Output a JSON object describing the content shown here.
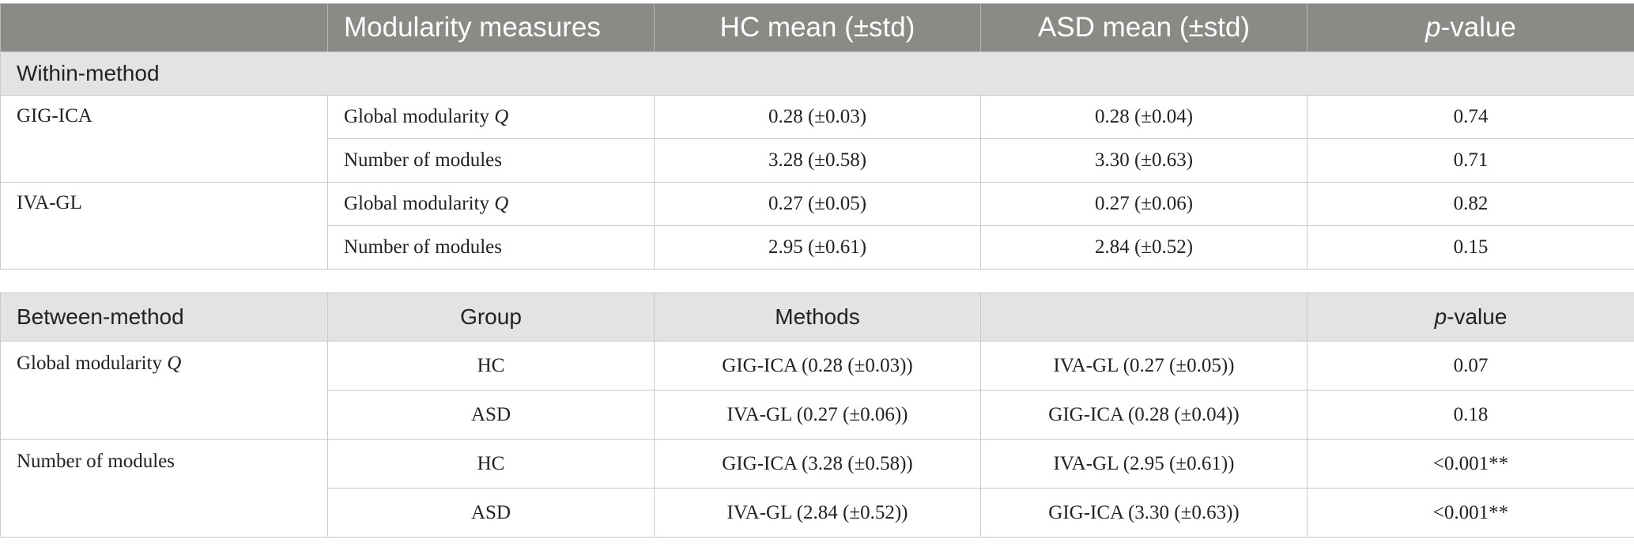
{
  "within_table": {
    "header": {
      "col0": "",
      "col1": "Modularity measures",
      "col2": "HC mean (±std)",
      "col3": "ASD mean (±std)",
      "col4_italic": "p",
      "col4_rest": "-value"
    },
    "section_label": "Within-method",
    "rows": [
      {
        "method": "GIG-ICA",
        "measure": "Global modularity ",
        "measure_symbol": "Q",
        "hc": "0.28 (±0.03)",
        "asd": "0.28 (±0.04)",
        "p": "0.74"
      },
      {
        "method": "",
        "measure": "Number of modules",
        "measure_symbol": "",
        "hc": "3.28 (±0.58)",
        "asd": "3.30 (±0.63)",
        "p": "0.71"
      },
      {
        "method": "IVA-GL",
        "measure": "Global modularity ",
        "measure_symbol": "Q",
        "hc": "0.27 (±0.05)",
        "asd": "0.27 (±0.06)",
        "p": "0.82"
      },
      {
        "method": "",
        "measure": "Number of modules",
        "measure_symbol": "",
        "hc": "2.95 (±0.61)",
        "asd": "2.84 (±0.52)",
        "p": "0.15"
      }
    ]
  },
  "between_table": {
    "header": {
      "col0": "Between-method",
      "col1": "Group",
      "col2": "Methods",
      "col3": "",
      "col4_italic": "p",
      "col4_rest": "-value"
    },
    "rows": [
      {
        "measure": "Global modularity ",
        "measure_symbol": "Q",
        "group": "HC",
        "method_a": "GIG-ICA (0.28 (±0.03))",
        "method_b": "IVA-GL (0.27 (±0.05))",
        "p": "0.07"
      },
      {
        "measure": "",
        "measure_symbol": "",
        "group": "ASD",
        "method_a": "IVA-GL (0.27 (±0.06))",
        "method_b": "GIG-ICA (0.28 (±0.04))",
        "p": "0.18"
      },
      {
        "measure": "Number of modules",
        "measure_symbol": "",
        "group": "HC",
        "method_a": "GIG-ICA (3.28 (±0.58))",
        "method_b": "IVA-GL (2.95 (±0.61))",
        "p": "<0.001**"
      },
      {
        "measure": "",
        "measure_symbol": "",
        "group": "ASD",
        "method_a": "IVA-GL (2.84 (±0.52))",
        "method_b": "GIG-ICA (3.30 (±0.63))",
        "p": "<0.001**"
      }
    ]
  },
  "colors": {
    "header_dark": "#8a8a87",
    "header_light": "#e3e3e3",
    "border": "#c9c9c9"
  }
}
